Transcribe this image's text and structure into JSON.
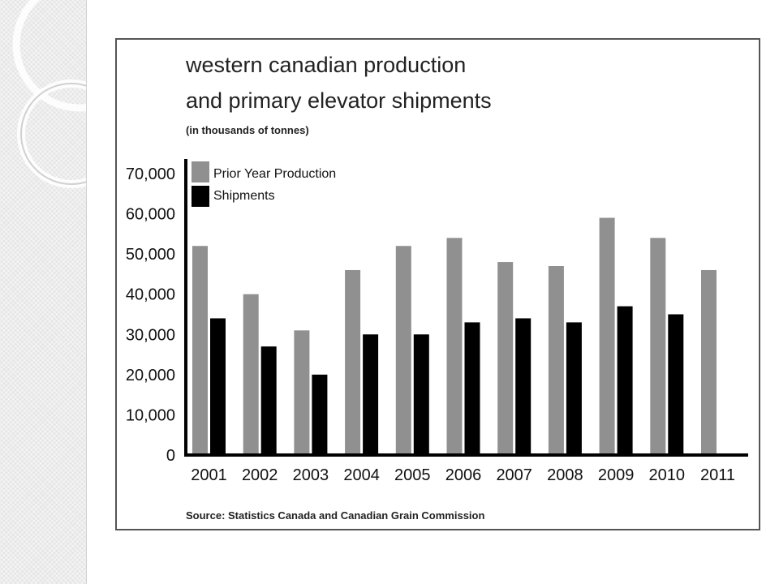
{
  "colors": {
    "prior_year_production": "#909090",
    "shipments": "#000000",
    "axis": "#000000"
  },
  "chart_data": {
    "type": "bar",
    "title": [
      "western canadian production",
      "and primary elevator shipments"
    ],
    "subtitle": "(in thousands of tonnes)",
    "xlabel": "",
    "ylabel": "",
    "ylim": [
      0,
      70000
    ],
    "yticks": [
      "0",
      "10,000",
      "20,000",
      "30,000",
      "40,000",
      "50,000",
      "60,000",
      "70,000"
    ],
    "legend_position": "top-left",
    "grid": false,
    "categories": [
      "2001",
      "2002",
      "2003",
      "2004",
      "2005",
      "2006",
      "2007",
      "2008",
      "2009",
      "2010",
      "2011"
    ],
    "series": [
      {
        "name": "Prior Year Production",
        "values": [
          52000,
          40000,
          31000,
          46000,
          52000,
          54000,
          48000,
          47000,
          59000,
          54000,
          46000
        ]
      },
      {
        "name": "Shipments",
        "values": [
          34000,
          27000,
          20000,
          30000,
          30000,
          33000,
          34000,
          33000,
          37000,
          35000,
          0
        ]
      }
    ],
    "source": "Source: Statistics Canada and Canadian Grain Commission"
  }
}
